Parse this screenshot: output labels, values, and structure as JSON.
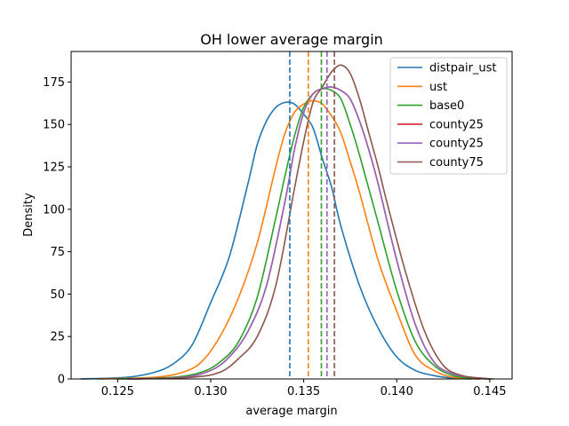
{
  "chart_data": {
    "type": "line",
    "title": "OH lower average margin",
    "xlabel": "average margin",
    "ylabel": "Density",
    "xlim": [
      0.1225,
      0.1462
    ],
    "ylim": [
      0,
      193
    ],
    "xticks": [
      0.125,
      0.13,
      0.135,
      0.14,
      0.145
    ],
    "xtick_labels": [
      "0.125",
      "0.130",
      "0.135",
      "0.140",
      "0.145"
    ],
    "yticks": [
      0,
      25,
      50,
      75,
      100,
      125,
      150,
      175
    ],
    "ytick_labels": [
      "0",
      "25",
      "50",
      "75",
      "100",
      "125",
      "150",
      "175"
    ],
    "grid": false,
    "legend_position": "top-right",
    "series": [
      {
        "name": "distpair_ust",
        "color": "#1f77b4",
        "mean": 0.13425,
        "x": [
          0.123,
          0.1255,
          0.127,
          0.128,
          0.129,
          0.13,
          0.131,
          0.132,
          0.1325,
          0.133,
          0.1335,
          0.134,
          0.1345,
          0.135,
          0.1355,
          0.136,
          0.1365,
          0.137,
          0.138,
          0.139,
          0.14,
          0.141,
          0.142,
          0.143,
          0.144
        ],
        "y": [
          0,
          1,
          4,
          9,
          20,
          45,
          72,
          115,
          138,
          152,
          160,
          163,
          162,
          156,
          148,
          130,
          113,
          90,
          55,
          30,
          13,
          5,
          2,
          0.5,
          0
        ]
      },
      {
        "name": "ust",
        "color": "#ff7f0e",
        "mean": 0.13525,
        "x": [
          0.124,
          0.127,
          0.1285,
          0.1295,
          0.1305,
          0.1315,
          0.1325,
          0.1335,
          0.134,
          0.1345,
          0.135,
          0.1355,
          0.136,
          0.1365,
          0.137,
          0.1375,
          0.138,
          0.139,
          0.14,
          0.141,
          0.142,
          0.143,
          0.1445
        ],
        "y": [
          0,
          1,
          4,
          10,
          25,
          48,
          80,
          125,
          145,
          157,
          162,
          164,
          162,
          155,
          145,
          128,
          110,
          70,
          40,
          14,
          5,
          1,
          0
        ]
      },
      {
        "name": "base0",
        "color": "#2ca02c",
        "mean": 0.13595,
        "x": [
          0.125,
          0.128,
          0.1295,
          0.1305,
          0.1315,
          0.1325,
          0.1335,
          0.134,
          0.1345,
          0.135,
          0.1355,
          0.136,
          0.1365,
          0.137,
          0.1375,
          0.138,
          0.139,
          0.14,
          0.141,
          0.142,
          0.143,
          0.144,
          0.145
        ],
        "y": [
          0,
          1,
          4,
          10,
          22,
          48,
          95,
          120,
          143,
          160,
          168,
          171,
          170,
          165,
          150,
          132,
          92,
          52,
          22,
          8,
          2,
          0.5,
          0
        ]
      },
      {
        "name": "county25",
        "color": "#d62728",
        "mean": 0.13625,
        "x": [
          0.1255,
          0.1285,
          0.13,
          0.131,
          0.132,
          0.133,
          0.134,
          0.1345,
          0.135,
          0.1355,
          0.136,
          0.1365,
          0.137,
          0.1375,
          0.138,
          0.1385,
          0.139,
          0.14,
          0.141,
          0.142,
          0.143,
          0.144,
          0.145
        ],
        "y": [
          0,
          1,
          5,
          13,
          28,
          55,
          105,
          135,
          157,
          168,
          171,
          172,
          170,
          165,
          152,
          135,
          115,
          70,
          32,
          10,
          3,
          1,
          0
        ]
      },
      {
        "name": "county25",
        "color": "#9467bd",
        "mean": 0.13625,
        "x": [
          0.1255,
          0.1285,
          0.13,
          0.131,
          0.132,
          0.133,
          0.134,
          0.1345,
          0.135,
          0.1355,
          0.136,
          0.1365,
          0.137,
          0.1375,
          0.138,
          0.1385,
          0.139,
          0.14,
          0.141,
          0.142,
          0.143,
          0.144,
          0.145
        ],
        "y": [
          0,
          1,
          5,
          13,
          28,
          55,
          105,
          135,
          157,
          168,
          171,
          172,
          170,
          165,
          152,
          135,
          115,
          70,
          32,
          10,
          3,
          1,
          0
        ]
      },
      {
        "name": "county75",
        "color": "#8c564b",
        "mean": 0.13665,
        "x": [
          0.126,
          0.129,
          0.1305,
          0.1315,
          0.1325,
          0.1335,
          0.1345,
          0.135,
          0.1355,
          0.136,
          0.1365,
          0.137,
          0.1375,
          0.138,
          0.1385,
          0.139,
          0.1395,
          0.1405,
          0.1415,
          0.1425,
          0.1435,
          0.1445,
          0.1452
        ],
        "y": [
          0,
          1,
          4,
          12,
          25,
          55,
          112,
          140,
          163,
          172,
          181,
          185,
          180,
          165,
          145,
          125,
          103,
          62,
          28,
          8,
          2,
          0.5,
          0
        ]
      }
    ]
  }
}
